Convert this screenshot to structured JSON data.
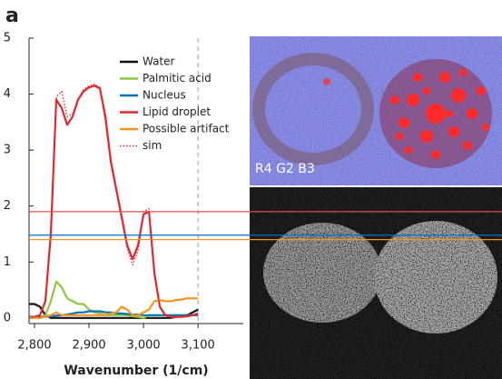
{
  "chart_data": {
    "type": "line",
    "panel_label": "a",
    "xlabel": "Wavenumber (1/cm)",
    "image_label": "R4 G2 B3",
    "x": [
      2790,
      2800,
      2810,
      2820,
      2830,
      2840,
      2850,
      2860,
      2870,
      2880,
      2890,
      2900,
      2910,
      2920,
      2930,
      2940,
      2950,
      2960,
      2970,
      2980,
      2990,
      3000,
      3010,
      3020,
      3030,
      3040,
      3050,
      3060,
      3070,
      3080,
      3090,
      3100
    ],
    "series": [
      {
        "name": "Water",
        "color": "#111111",
        "style": "solid",
        "values": [
          0.25,
          0.25,
          0.2,
          0.05,
          0,
          0,
          0,
          0,
          0,
          0,
          0,
          0,
          0,
          0,
          0,
          0,
          0,
          0,
          0,
          0,
          0,
          0,
          0,
          0,
          0,
          0,
          0,
          0.02,
          0.03,
          0.05,
          0.1,
          0.15
        ]
      },
      {
        "name": "Palmitic acid",
        "color": "#8dc63f",
        "style": "solid",
        "values": [
          0,
          0,
          0,
          0.05,
          0.3,
          0.65,
          0.55,
          0.35,
          0.3,
          0.25,
          0.25,
          0.15,
          0.1,
          0.08,
          0.05,
          0.05,
          0.05,
          0.05,
          0.05,
          0.03,
          0.02,
          0,
          0.05,
          0.05,
          0.05,
          0.05,
          0.05,
          0.05,
          0.05,
          0.05,
          0.05,
          0.05
        ]
      },
      {
        "name": "Nucleus",
        "color": "#0072bc",
        "style": "solid",
        "values": [
          0.02,
          0.02,
          0.02,
          0.02,
          0.03,
          0.04,
          0.05,
          0.06,
          0.08,
          0.1,
          0.1,
          0.12,
          0.12,
          0.12,
          0.1,
          0.1,
          0.08,
          0.08,
          0.07,
          0.06,
          0.06,
          0.05,
          0.05,
          0.05,
          0.05,
          0.05,
          0.05,
          0.05,
          0.05,
          0.05,
          0.05,
          0.05
        ]
      },
      {
        "name": "Lipid droplet",
        "color": "#e0282e",
        "style": "solid",
        "values": [
          0,
          0.02,
          0.05,
          0.3,
          1.5,
          3.9,
          3.75,
          3.45,
          3.6,
          3.9,
          4.05,
          4.12,
          4.15,
          4.1,
          3.6,
          2.8,
          2.3,
          1.8,
          1.3,
          1.05,
          1.3,
          1.85,
          1.9,
          0.8,
          0.2,
          0.05,
          0.02,
          0.02,
          0.02,
          0.03,
          0.05,
          0.08
        ]
      },
      {
        "name": "Possible artifact",
        "color": "#f7941d",
        "style": "solid",
        "values": [
          0,
          0,
          0,
          0.02,
          0.05,
          0.1,
          0.05,
          0.05,
          0.05,
          0.05,
          0.05,
          0.05,
          0.05,
          0.05,
          0.05,
          0.08,
          0.1,
          0.2,
          0.15,
          0.05,
          0.05,
          0.1,
          0.15,
          0.3,
          0.32,
          0.3,
          0.3,
          0.32,
          0.33,
          0.35,
          0.35,
          0.35
        ]
      },
      {
        "name": "sim",
        "color": "#e0282e",
        "style": "dotted",
        "values": [
          0,
          0.02,
          0.05,
          0.3,
          1.6,
          3.95,
          4.05,
          3.6,
          3.65,
          3.92,
          4.08,
          4.15,
          4.18,
          4.12,
          3.5,
          2.75,
          2.25,
          1.75,
          1.25,
          0.95,
          1.2,
          1.9,
          1.95,
          0.75,
          0.18,
          0.05,
          0.02,
          0.02,
          0.02,
          0.03,
          0.05,
          0.08
        ]
      }
    ],
    "reference_lines": [
      {
        "value": 1.9,
        "color": "#e05050"
      },
      {
        "value": 1.48,
        "color": "#0072bc"
      },
      {
        "value": 1.4,
        "color": "#f7941d"
      }
    ],
    "vline": 3100,
    "xlim": [
      2790,
      3183
    ],
    "ylim": [
      -0.1,
      5
    ],
    "xticks": [
      {
        "value": 2800,
        "label": "2,800"
      },
      {
        "value": 2900,
        "label": "2,900"
      },
      {
        "value": 3000,
        "label": "3,000"
      },
      {
        "value": 3100,
        "label": "3,100"
      }
    ],
    "yticks": [
      0,
      1,
      2,
      3,
      4,
      5
    ]
  }
}
